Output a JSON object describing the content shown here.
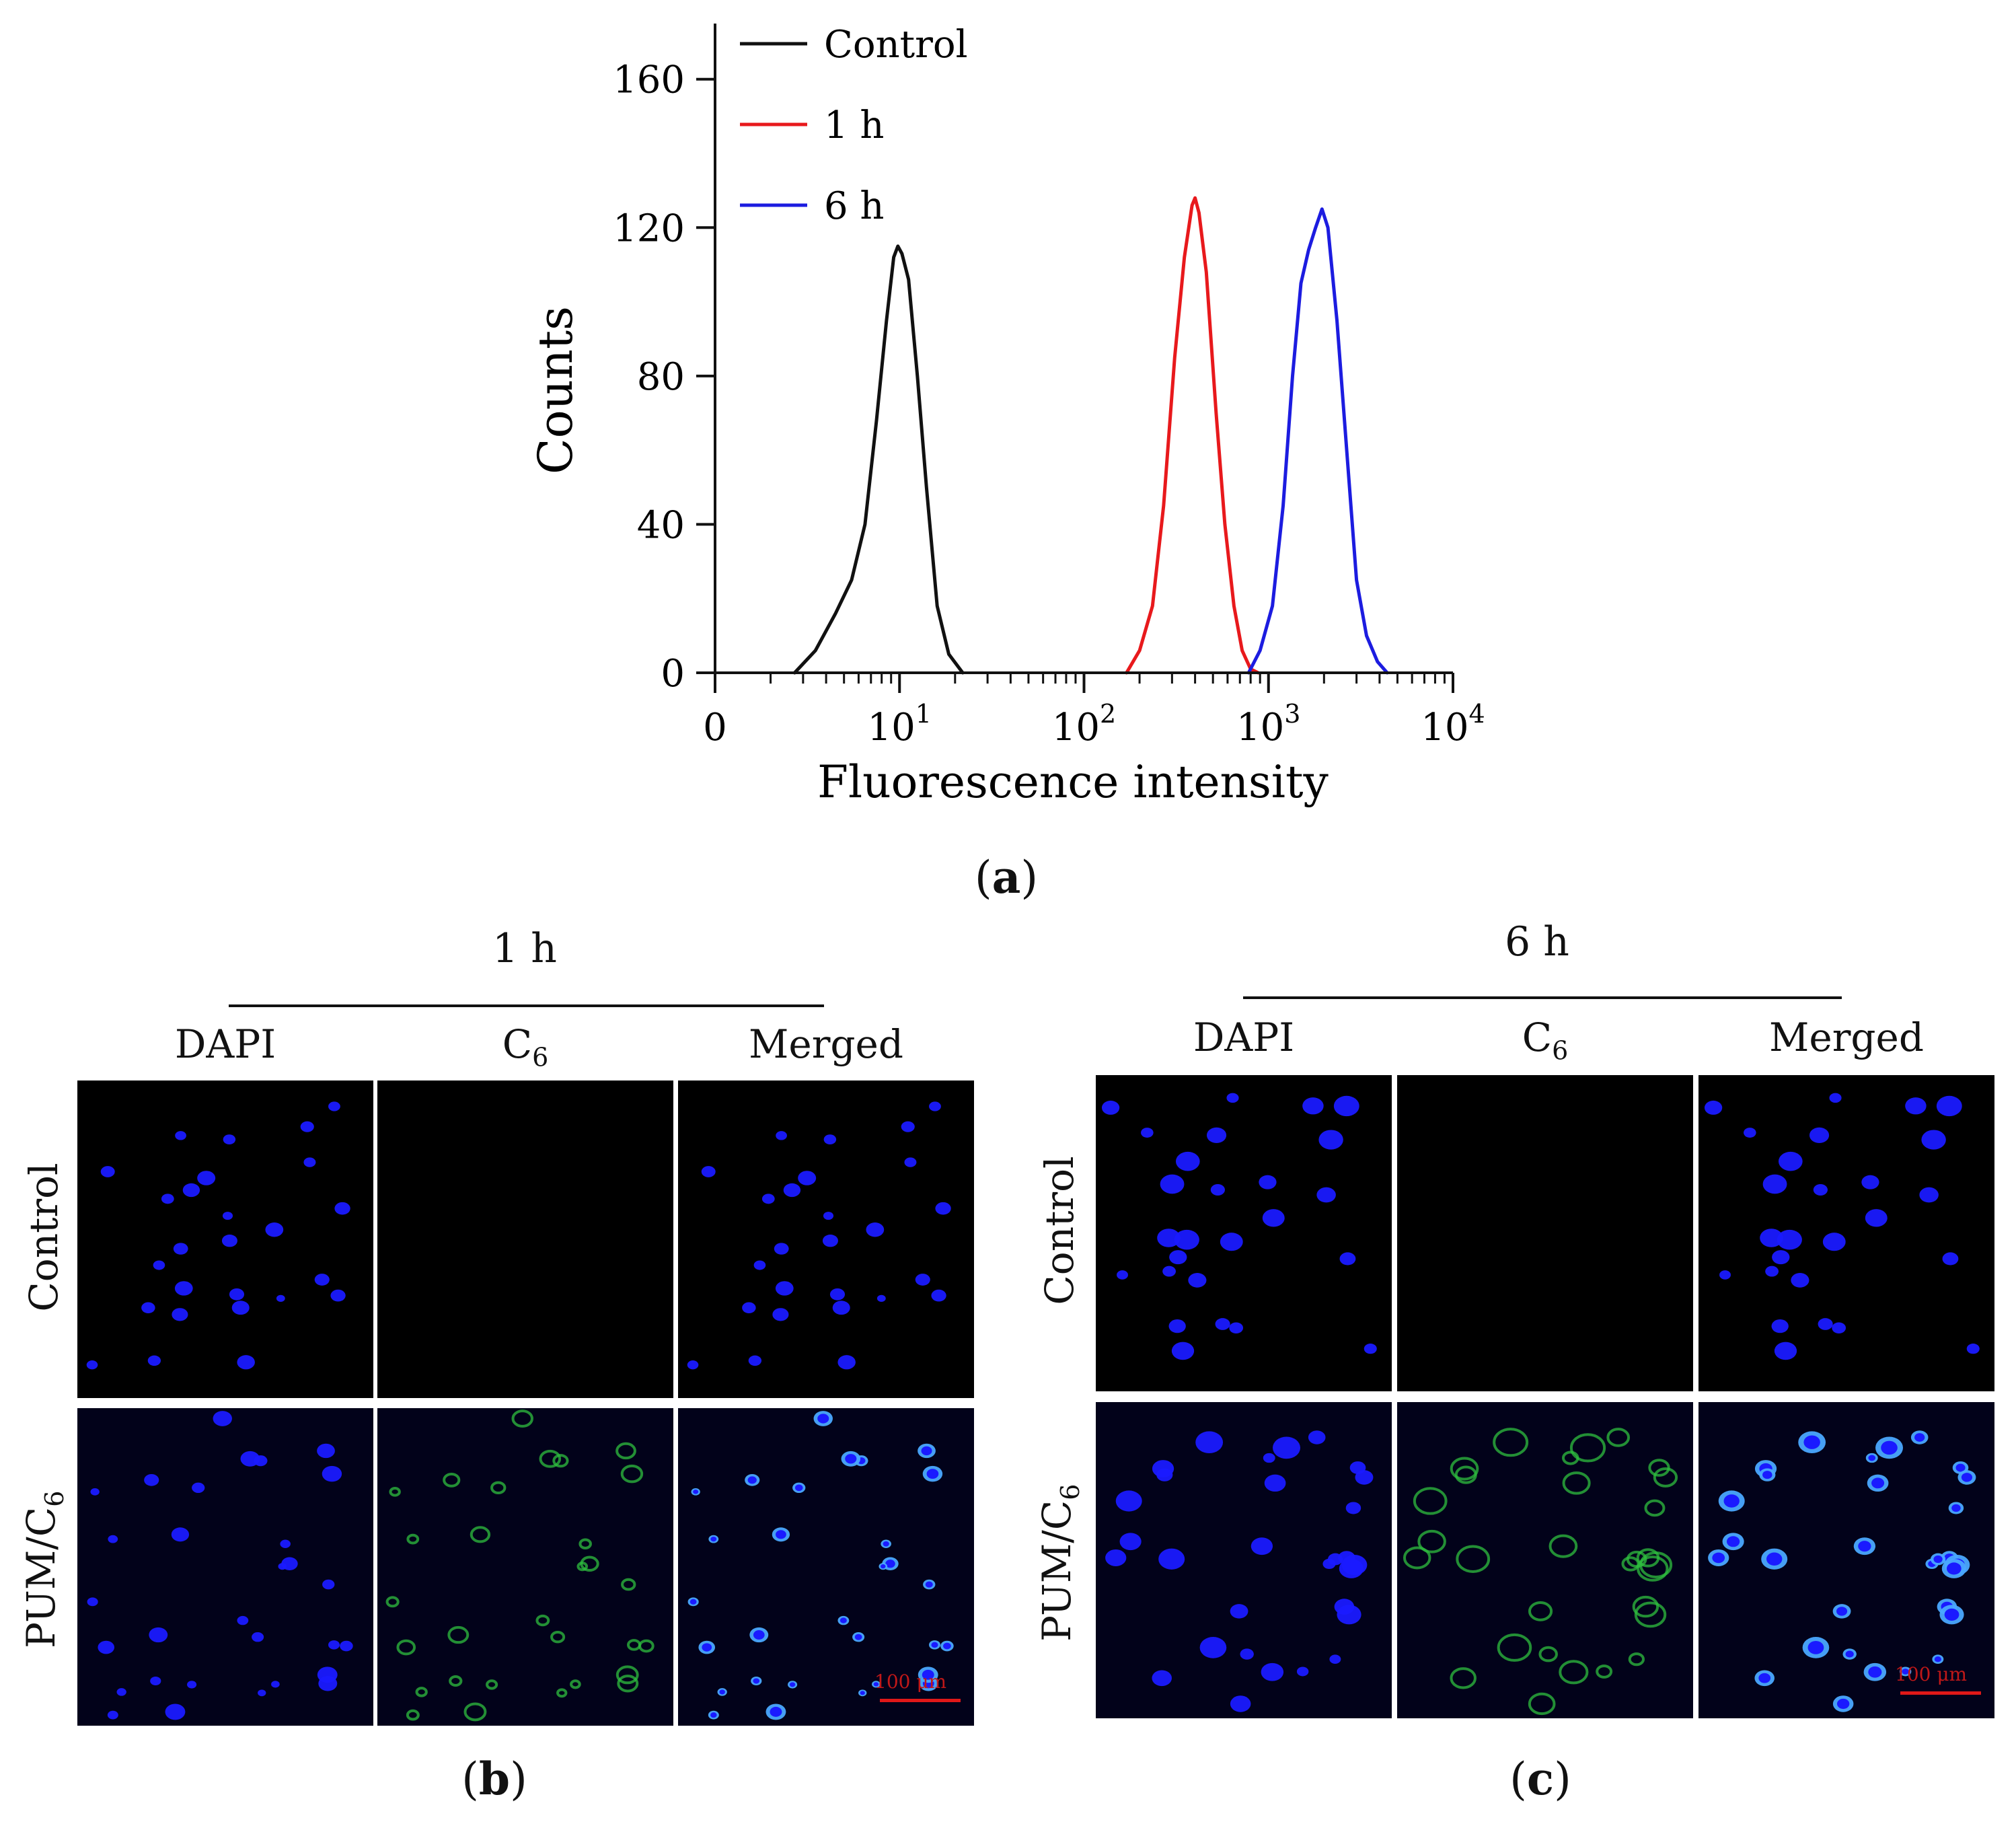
{
  "chart_data": {
    "type": "line",
    "title": "",
    "xlabel": "Fluorescence intensity",
    "ylabel": "Counts",
    "x_scale": "log",
    "xlim": [
      1,
      10000
    ],
    "ylim": [
      0,
      175
    ],
    "y_ticks": [
      0,
      40,
      80,
      120,
      160
    ],
    "x_ticks": [
      {
        "value": 1,
        "label": "0"
      },
      {
        "value": 10,
        "base": "10",
        "exp": "1"
      },
      {
        "value": 100,
        "base": "10",
        "exp": "2"
      },
      {
        "value": 1000,
        "base": "10",
        "exp": "3"
      },
      {
        "value": 10000,
        "base": "10",
        "exp": "4"
      }
    ],
    "legend_position": "top-left",
    "series": [
      {
        "name": "Control",
        "color": "#111111",
        "peak_x": 9.8,
        "peak_y": 115,
        "log_width": 0.16,
        "x": [
          2.7,
          3.5,
          4.5,
          5.5,
          6.5,
          7.5,
          8.5,
          9.3,
          9.8,
          10.3,
          11.2,
          12.5,
          14,
          16,
          18.5,
          22
        ],
        "y": [
          0,
          6,
          16,
          25,
          40,
          68,
          95,
          112,
          115,
          113,
          106,
          80,
          50,
          18,
          5,
          0
        ]
      },
      {
        "name": "1 h",
        "color": "#e8191c",
        "peak_x": 400,
        "peak_y": 128,
        "log_width": 0.12,
        "x": [
          170,
          200,
          235,
          270,
          310,
          350,
          385,
          400,
          420,
          460,
          520,
          580,
          650,
          720,
          800,
          880
        ],
        "y": [
          0,
          6,
          18,
          45,
          85,
          112,
          126,
          128,
          124,
          108,
          70,
          40,
          18,
          6,
          1,
          0
        ]
      },
      {
        "name": "6 h",
        "color": "#1c1ce0",
        "peak_x": 1950,
        "peak_y": 125,
        "log_width": 0.13,
        "x": [
          780,
          900,
          1050,
          1200,
          1350,
          1500,
          1650,
          1800,
          1950,
          2100,
          2350,
          2700,
          3000,
          3400,
          3900,
          4400
        ],
        "y": [
          0,
          6,
          18,
          45,
          80,
          105,
          114,
          120,
          125,
          120,
          95,
          55,
          25,
          10,
          3,
          0
        ]
      }
    ]
  },
  "labels": {
    "a": {
      "open": "(",
      "letter": "a",
      "close": ")"
    },
    "b": {
      "open": "(",
      "letter": "b",
      "close": ")"
    },
    "c": {
      "open": "(",
      "letter": "c",
      "close": ")"
    }
  },
  "panel_b": {
    "title": "1 h",
    "columns": [
      {
        "text": "DAPI",
        "sub": ""
      },
      {
        "text": "C",
        "sub": "6"
      },
      {
        "text": "Merged",
        "sub": ""
      }
    ],
    "rows": [
      {
        "text": "Control",
        "sub": ""
      },
      {
        "text": "PUM/C",
        "sub": "6"
      }
    ],
    "scale_text": "100 μm"
  },
  "panel_c": {
    "title": "6 h",
    "columns": [
      {
        "text": "DAPI",
        "sub": ""
      },
      {
        "text": "C",
        "sub": "6"
      },
      {
        "text": "Merged",
        "sub": ""
      }
    ],
    "rows": [
      {
        "text": "Control",
        "sub": ""
      },
      {
        "text": "PUM/C",
        "sub": "6"
      }
    ],
    "scale_text": "100 μm"
  },
  "colors": {
    "dapi": "#1a1aff",
    "c6": "#2fbf3f",
    "merged": "#4aa8ff",
    "scale": "#e01818"
  }
}
